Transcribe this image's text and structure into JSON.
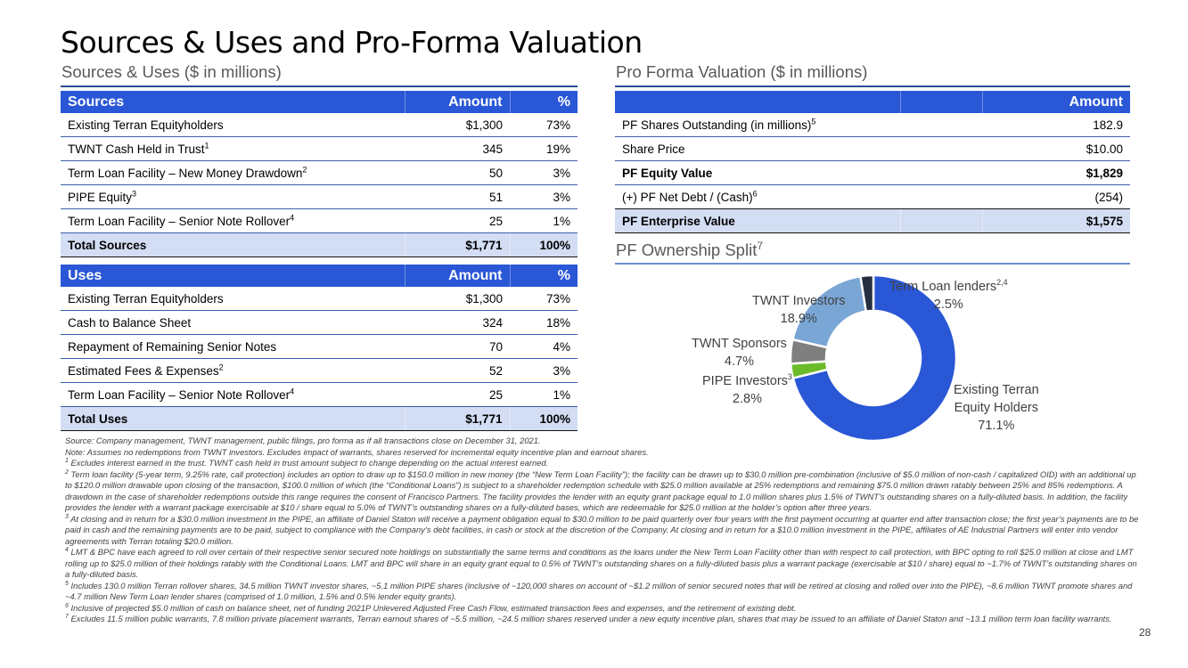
{
  "page": {
    "title": "Sources & Uses and Pro-Forma Valuation",
    "page_number": "28"
  },
  "sources_uses": {
    "section_title": "Sources & Uses ($ in millions)",
    "sources": {
      "headers": [
        "Sources",
        "Amount",
        "%"
      ],
      "rows": [
        {
          "label": "Existing Terran Equityholders",
          "sup": "",
          "amount": "$1,300",
          "pct": "73%"
        },
        {
          "label": "TWNT Cash Held in Trust",
          "sup": "1",
          "amount": "345",
          "pct": "19%"
        },
        {
          "label": "Term Loan Facility – New Money Drawdown",
          "sup": "2",
          "amount": "50",
          "pct": "3%"
        },
        {
          "label": "PIPE Equity",
          "sup": "3",
          "amount": "51",
          "pct": "3%"
        },
        {
          "label": "Term Loan Facility – Senior Note Rollover",
          "sup": "4",
          "amount": "25",
          "pct": "1%"
        }
      ],
      "total": {
        "label": "Total Sources",
        "amount": "$1,771",
        "pct": "100%"
      }
    },
    "uses": {
      "headers": [
        "Uses",
        "Amount",
        "%"
      ],
      "rows": [
        {
          "label": "Existing Terran Equityholders",
          "sup": "",
          "amount": "$1,300",
          "pct": "73%"
        },
        {
          "label": "Cash to Balance Sheet",
          "sup": "",
          "amount": "324",
          "pct": "18%"
        },
        {
          "label": "Repayment of Remaining Senior Notes",
          "sup": "",
          "amount": "70",
          "pct": "4%"
        },
        {
          "label": "Estimated Fees & Expenses",
          "sup": "2",
          "amount": "52",
          "pct": "3%"
        },
        {
          "label": "Term Loan Facility – Senior Note Rollover",
          "sup": "4",
          "amount": "25",
          "pct": "1%"
        }
      ],
      "total": {
        "label": "Total Uses",
        "amount": "$1,771",
        "pct": "100%"
      }
    }
  },
  "valuation": {
    "section_title": "Pro Forma Valuation ($ in millions)",
    "headers": [
      "",
      "",
      "Amount"
    ],
    "rows": [
      {
        "label": "PF Shares Outstanding (in millions)",
        "sup": "5",
        "amount": "182.9",
        "bold": false
      },
      {
        "label": "Share Price",
        "sup": "",
        "amount": "$10.00",
        "bold": false
      },
      {
        "label": "PF Equity Value",
        "sup": "",
        "amount": "$1,829",
        "bold": true
      },
      {
        "label": "(+) PF Net Debt / (Cash)",
        "sup": "6",
        "amount": "(254)",
        "bold": false
      }
    ],
    "total": {
      "label": "PF Enterprise Value",
      "amount": "$1,575"
    }
  },
  "ownership": {
    "section_title": "PF Ownership Split",
    "section_title_sup": "7"
  },
  "chart_data": {
    "type": "pie",
    "title": "PF Ownership Split",
    "donut": true,
    "order": "clockwise from top",
    "units": "%",
    "slices": [
      {
        "name": "Existing Terran Equity Holders",
        "label_lines": [
          "Existing Terran",
          "Equity Holders"
        ],
        "sup": "",
        "value": 71.1,
        "display": "71.1%",
        "color": "#2a57d6"
      },
      {
        "name": "PIPE Investors",
        "label_lines": [
          "PIPE Investors"
        ],
        "sup": "3",
        "value": 2.8,
        "display": "2.8%",
        "color": "#6cbb2a"
      },
      {
        "name": "TWNT Sponsors",
        "label_lines": [
          "TWNT Sponsors"
        ],
        "sup": "",
        "value": 4.7,
        "display": "4.7%",
        "color": "#7f7f7f"
      },
      {
        "name": "TWNT Investors",
        "label_lines": [
          "TWNT Investors"
        ],
        "sup": "",
        "value": 18.9,
        "display": "18.9%",
        "color": "#7aa6d6"
      },
      {
        "name": "Term Loan lenders",
        "label_lines": [
          "Term Loan lenders"
        ],
        "sup": "2,4",
        "value": 2.5,
        "display": "2.5%",
        "color": "#262f3f"
      }
    ]
  },
  "footnotes": [
    {
      "sup": "",
      "text": "Source: Company management, TWNT management, public filings, pro forma as if all transactions close on December 31, 2021."
    },
    {
      "sup": "",
      "text": "Note: Assumes no redemptions from TWNT investors. Excludes impact of warrants, shares reserved for incremental equity incentive plan and earnout shares."
    },
    {
      "sup": "1",
      "text": " Excludes interest earned in the trust. TWNT cash held in trust amount subject to change depending on the actual interest earned."
    },
    {
      "sup": "2",
      "text": " Term loan facility (5-year term, 9.25% rate, call protection) includes an option to draw up to $150.0 million in new money (the “New Term Loan Facility”); the facility can be drawn up to $30.0 million pre-combination (inclusive of $5.0 million of non-cash / capitalized OID) with an additional up to $120.0 million drawable upon closing of the transaction, $100.0 million of which (the “Conditional Loans”) is subject to a shareholder redemption schedule with $25.0 million available at 25% redemptions and remaining $75.0 million drawn ratably between 25% and 85% redemptions. A drawdown in the case of shareholder redemptions outside this range requires the consent of Francisco Partners. The facility provides the lender with an equity grant package equal to 1.0 million shares plus 1.5% of TWNT’s outstanding shares on a fully-diluted basis. In addition, the facility provides the lender with a warrant package exercisable at $10 / share equal to 5.0% of TWNT’s outstanding shares on a fully-diluted bases, which are redeemable for $25.0 million at the holder’s option after three years."
    },
    {
      "sup": "3",
      "text": " At closing and in return for a $30.0 million investment in the PIPE, an affiliate of Daniel Staton will receive a payment obligation equal to $30.0 million to be paid quarterly over four years with the first payment occurring at quarter end after transaction close; the first year’s payments are to be paid in cash and the remaining payments are to be paid, subject to compliance with the Company’s debt facilities, in cash or stock at the discretion of the Company. At closing and in return for a $10.0 million investment in the PIPE, affiliates of AE Industrial Partners will enter into vendor agreements with Terran totaling $20.0 million."
    },
    {
      "sup": "4",
      "text": " LMT & BPC have each agreed to roll over certain of their respective senior secured note holdings on substantially the same terms and conditions as the loans under the New Term Loan Facility other than with respect to call protection, with BPC opting to roll $25.0 million at close and LMT rolling up to $25.0 million of their holdings ratably with the Conditional Loans. LMT and BPC will share in an equity grant equal to 0.5% of TWNT’s outstanding shares on a fully-diluted basis plus a warrant package (exercisable at $10 / share) equal to ~1.7% of TWNT’s outstanding shares on a fully-diluted basis."
    },
    {
      "sup": "5",
      "text": " Includes 130.0 million Terran rollover shares, 34.5 million TWNT investor shares, ~5.1 million PIPE shares (inclusive of ~120,000 shares on account of ~$1.2 million of senior secured notes that will be retired at closing and rolled over into the PIPE), ~8.6 million TWNT promote shares and ~4.7 million New Term Loan lender shares (comprised of 1.0 million, 1.5% and 0.5% lender equity grants)."
    },
    {
      "sup": "6",
      "text": " Inclusive of projected $5.0 million of cash on balance sheet, net of funding 2021P Unlevered Adjusted Free Cash Flow, estimated transaction fees and expenses, and the retirement of existing debt."
    },
    {
      "sup": "7",
      "text": " Excludes 11.5 million public warrants, 7.8 million private placement warrants, Terran earnout shares of ~5.5 million, ~24.5 million shares reserved under a new equity incentive plan, shares that may be issued to an affiliate of Daniel Staton and ~13.1 million term loan facility warrants."
    }
  ]
}
